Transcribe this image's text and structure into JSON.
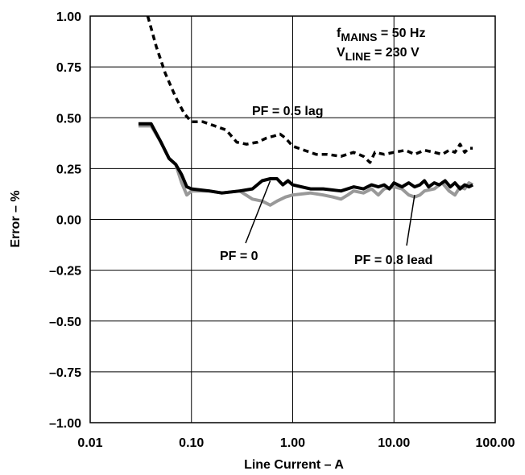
{
  "chart_data": {
    "type": "line",
    "xlabel": "Line Current – A",
    "ylabel": "Error – %",
    "x_scale": "log",
    "xlim": [
      0.01,
      100
    ],
    "ylim": [
      -1.0,
      1.0
    ],
    "grid": true,
    "x_ticks": [
      {
        "value": 0.01,
        "label": "0.01"
      },
      {
        "value": 0.1,
        "label": "0.10"
      },
      {
        "value": 1,
        "label": "1.00"
      },
      {
        "value": 10,
        "label": "10.00"
      },
      {
        "value": 100,
        "label": "100.00"
      }
    ],
    "y_ticks": [
      {
        "value": 1.0,
        "label": "1.00"
      },
      {
        "value": 0.75,
        "label": "0.75"
      },
      {
        "value": 0.5,
        "label": "0.50"
      },
      {
        "value": 0.25,
        "label": "0.25"
      },
      {
        "value": 0.0,
        "label": "0.00"
      },
      {
        "value": -0.25,
        "label": "–0.25"
      },
      {
        "value": -0.5,
        "label": "–0.50"
      },
      {
        "value": -0.75,
        "label": "–0.75"
      },
      {
        "value": -1.0,
        "label": "–1.00"
      }
    ],
    "conditions": [
      {
        "main": "f",
        "sub": "MAINS",
        "rest": " = 50 Hz"
      },
      {
        "main": "V",
        "sub": "LINE",
        "rest": " = 230 V"
      }
    ],
    "series": [
      {
        "name": "PF = 0.5 lag",
        "color": "#000000",
        "style": "dashed",
        "points": [
          [
            0.037,
            1.0
          ],
          [
            0.045,
            0.85
          ],
          [
            0.055,
            0.72
          ],
          [
            0.07,
            0.6
          ],
          [
            0.085,
            0.52
          ],
          [
            0.1,
            0.48
          ],
          [
            0.13,
            0.48
          ],
          [
            0.17,
            0.46
          ],
          [
            0.22,
            0.44
          ],
          [
            0.28,
            0.38
          ],
          [
            0.35,
            0.37
          ],
          [
            0.45,
            0.38
          ],
          [
            0.55,
            0.4
          ],
          [
            0.65,
            0.41
          ],
          [
            0.75,
            0.42
          ],
          [
            0.85,
            0.4
          ],
          [
            1.0,
            0.36
          ],
          [
            1.3,
            0.34
          ],
          [
            1.7,
            0.32
          ],
          [
            2.2,
            0.32
          ],
          [
            3.0,
            0.31
          ],
          [
            4.0,
            0.33
          ],
          [
            5.0,
            0.31
          ],
          [
            5.8,
            0.28
          ],
          [
            6.5,
            0.33
          ],
          [
            8.0,
            0.32
          ],
          [
            10.0,
            0.33
          ],
          [
            13.0,
            0.34
          ],
          [
            16.0,
            0.32
          ],
          [
            20.0,
            0.34
          ],
          [
            25.0,
            0.33
          ],
          [
            30.0,
            0.32
          ],
          [
            35.0,
            0.34
          ],
          [
            40.0,
            0.33
          ],
          [
            45.0,
            0.37
          ],
          [
            50.0,
            0.33
          ],
          [
            55.0,
            0.35
          ],
          [
            60.0,
            0.35
          ]
        ]
      },
      {
        "name": "PF = 0.8 lead",
        "color": "#999999",
        "style": "solid",
        "points": [
          [
            0.03,
            0.46
          ],
          [
            0.04,
            0.46
          ],
          [
            0.05,
            0.38
          ],
          [
            0.06,
            0.3
          ],
          [
            0.07,
            0.27
          ],
          [
            0.08,
            0.18
          ],
          [
            0.09,
            0.12
          ],
          [
            0.1,
            0.14
          ],
          [
            0.15,
            0.14
          ],
          [
            0.2,
            0.13
          ],
          [
            0.3,
            0.14
          ],
          [
            0.4,
            0.1
          ],
          [
            0.5,
            0.09
          ],
          [
            0.6,
            0.07
          ],
          [
            0.7,
            0.09
          ],
          [
            0.85,
            0.11
          ],
          [
            1.0,
            0.12
          ],
          [
            1.5,
            0.13
          ],
          [
            2.0,
            0.12
          ],
          [
            2.5,
            0.11
          ],
          [
            3.0,
            0.1
          ],
          [
            3.5,
            0.12
          ],
          [
            4.0,
            0.14
          ],
          [
            5.0,
            0.13
          ],
          [
            6.0,
            0.15
          ],
          [
            7.0,
            0.12
          ],
          [
            8.0,
            0.15
          ],
          [
            10.0,
            0.16
          ],
          [
            12.0,
            0.15
          ],
          [
            14.0,
            0.12
          ],
          [
            16.0,
            0.11
          ],
          [
            18.0,
            0.12
          ],
          [
            20.0,
            0.14
          ],
          [
            25.0,
            0.15
          ],
          [
            30.0,
            0.18
          ],
          [
            35.0,
            0.14
          ],
          [
            40.0,
            0.12
          ],
          [
            45.0,
            0.16
          ],
          [
            50.0,
            0.15
          ],
          [
            55.0,
            0.18
          ],
          [
            60.0,
            0.17
          ]
        ]
      },
      {
        "name": "PF = 0",
        "color": "#000000",
        "style": "solid",
        "points": [
          [
            0.03,
            0.47
          ],
          [
            0.04,
            0.47
          ],
          [
            0.05,
            0.38
          ],
          [
            0.06,
            0.3
          ],
          [
            0.07,
            0.27
          ],
          [
            0.08,
            0.22
          ],
          [
            0.09,
            0.16
          ],
          [
            0.1,
            0.15
          ],
          [
            0.15,
            0.14
          ],
          [
            0.2,
            0.13
          ],
          [
            0.3,
            0.14
          ],
          [
            0.4,
            0.15
          ],
          [
            0.5,
            0.19
          ],
          [
            0.6,
            0.2
          ],
          [
            0.7,
            0.2
          ],
          [
            0.8,
            0.17
          ],
          [
            0.9,
            0.19
          ],
          [
            1.0,
            0.17
          ],
          [
            1.5,
            0.15
          ],
          [
            2.0,
            0.15
          ],
          [
            3.0,
            0.14
          ],
          [
            4.0,
            0.16
          ],
          [
            5.0,
            0.15
          ],
          [
            6.0,
            0.17
          ],
          [
            7.0,
            0.16
          ],
          [
            8.0,
            0.17
          ],
          [
            9.0,
            0.15
          ],
          [
            10.0,
            0.18
          ],
          [
            12.0,
            0.16
          ],
          [
            14.0,
            0.18
          ],
          [
            16.0,
            0.16
          ],
          [
            18.0,
            0.17
          ],
          [
            20.0,
            0.19
          ],
          [
            22.0,
            0.16
          ],
          [
            25.0,
            0.18
          ],
          [
            28.0,
            0.17
          ],
          [
            32.0,
            0.19
          ],
          [
            36.0,
            0.16
          ],
          [
            40.0,
            0.18
          ],
          [
            45.0,
            0.15
          ],
          [
            50.0,
            0.17
          ],
          [
            55.0,
            0.16
          ],
          [
            60.0,
            0.17
          ]
        ]
      }
    ],
    "annotations": [
      {
        "text": "PF = 0.5 lag",
        "series": "PF = 0.5 lag"
      },
      {
        "text": "PF = 0",
        "series": "PF = 0",
        "leader_to": [
          0.6,
          0.19
        ]
      },
      {
        "text": "PF = 0.8 lead",
        "series": "PF = 0.8 lead",
        "leader_to": [
          16.0,
          0.12
        ]
      }
    ]
  }
}
